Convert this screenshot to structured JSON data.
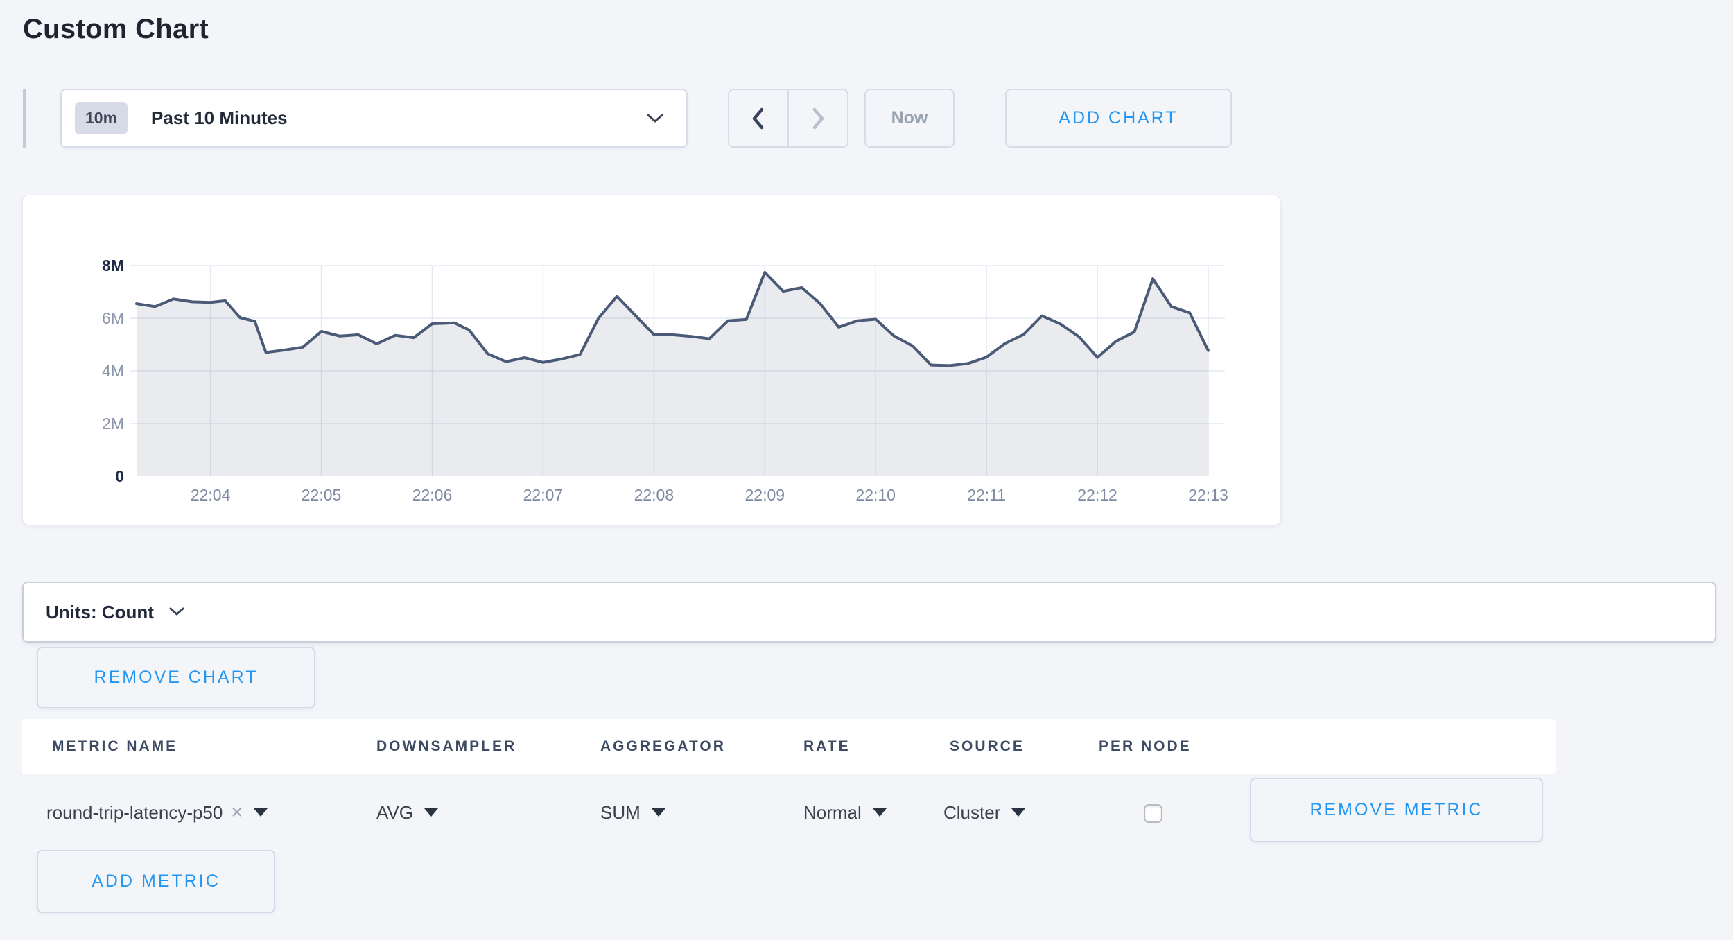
{
  "page": {
    "title": "Custom Chart",
    "accent_color": "#2196f3"
  },
  "toolbar": {
    "time_scale_badge": "10m",
    "time_scale_label": "Past 10 Minutes",
    "now_label": "Now",
    "add_chart_label": "ADD CHART"
  },
  "chart": {
    "units_label": "Units: Count",
    "remove_chart_label": "REMOVE CHART"
  },
  "chart_data": {
    "type": "area",
    "title": "",
    "ylabel": "",
    "xlabel": "",
    "unit": "Count",
    "ylim": [
      0,
      8
    ],
    "value_scale": "millions",
    "grid": true,
    "x_domain_seconds": [
      20,
      600
    ],
    "y_ticks": [
      {
        "v": 0,
        "label": "0",
        "major": true
      },
      {
        "v": 2,
        "label": "2M",
        "major": false
      },
      {
        "v": 4,
        "label": "4M",
        "major": false
      },
      {
        "v": 6,
        "label": "6M",
        "major": false
      },
      {
        "v": 8,
        "label": "8M",
        "major": true
      }
    ],
    "x_ticks": [
      {
        "t": 60,
        "label": "22:04"
      },
      {
        "t": 120,
        "label": "22:05"
      },
      {
        "t": 180,
        "label": "22:06"
      },
      {
        "t": 240,
        "label": "22:07"
      },
      {
        "t": 300,
        "label": "22:08"
      },
      {
        "t": 360,
        "label": "22:09"
      },
      {
        "t": 420,
        "label": "22:10"
      },
      {
        "t": 480,
        "label": "22:11"
      },
      {
        "t": 540,
        "label": "22:12"
      },
      {
        "t": 600,
        "label": "22:13"
      }
    ],
    "series": [
      {
        "name": "round-trip-latency-p50",
        "color": "#4b5a77",
        "fill": "rgba(76,90,117,0.12)",
        "points": [
          [
            20,
            6.55
          ],
          [
            30,
            6.44
          ],
          [
            40,
            6.73
          ],
          [
            50,
            6.62
          ],
          [
            60,
            6.6
          ],
          [
            68,
            6.66
          ],
          [
            76,
            6.02
          ],
          [
            84,
            5.88
          ],
          [
            90,
            4.7
          ],
          [
            100,
            4.79
          ],
          [
            110,
            4.9
          ],
          [
            120,
            5.5
          ],
          [
            130,
            5.32
          ],
          [
            140,
            5.37
          ],
          [
            150,
            5.03
          ],
          [
            160,
            5.35
          ],
          [
            170,
            5.26
          ],
          [
            180,
            5.79
          ],
          [
            192,
            5.82
          ],
          [
            200,
            5.55
          ],
          [
            210,
            4.65
          ],
          [
            220,
            4.35
          ],
          [
            230,
            4.5
          ],
          [
            240,
            4.32
          ],
          [
            250,
            4.45
          ],
          [
            260,
            4.62
          ],
          [
            270,
            6.0
          ],
          [
            280,
            6.83
          ],
          [
            290,
            6.1
          ],
          [
            300,
            5.38
          ],
          [
            310,
            5.37
          ],
          [
            320,
            5.31
          ],
          [
            330,
            5.22
          ],
          [
            340,
            5.9
          ],
          [
            350,
            5.95
          ],
          [
            360,
            7.74
          ],
          [
            370,
            7.02
          ],
          [
            380,
            7.16
          ],
          [
            390,
            6.55
          ],
          [
            400,
            5.66
          ],
          [
            410,
            5.9
          ],
          [
            420,
            5.96
          ],
          [
            430,
            5.32
          ],
          [
            440,
            4.95
          ],
          [
            450,
            4.22
          ],
          [
            460,
            4.2
          ],
          [
            470,
            4.28
          ],
          [
            480,
            4.52
          ],
          [
            490,
            5.04
          ],
          [
            500,
            5.38
          ],
          [
            510,
            6.09
          ],
          [
            520,
            5.78
          ],
          [
            530,
            5.3
          ],
          [
            540,
            4.51
          ],
          [
            550,
            5.12
          ],
          [
            560,
            5.48
          ],
          [
            570,
            7.5
          ],
          [
            580,
            6.44
          ],
          [
            590,
            6.2
          ],
          [
            600,
            4.77
          ]
        ]
      }
    ]
  },
  "metrics_table": {
    "headers": [
      "METRIC NAME",
      "DOWNSAMPLER",
      "AGGREGATOR",
      "RATE",
      "SOURCE",
      "PER NODE"
    ],
    "rows": [
      {
        "metric_name": "round-trip-latency-p50",
        "clear_icon": "×",
        "downsampler": "AVG",
        "aggregator": "SUM",
        "rate": "Normal",
        "source": "Cluster",
        "per_node_checked": false,
        "remove_metric_label": "REMOVE METRIC"
      }
    ],
    "add_metric_label": "ADD METRIC"
  }
}
